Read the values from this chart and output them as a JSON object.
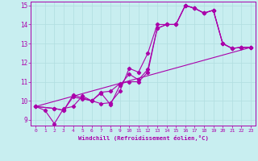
{
  "xlabel": "Windchill (Refroidissement éolien,°C)",
  "bg_color": "#c8eef0",
  "line_color": "#aa00aa",
  "grid_color": "#b0dde0",
  "xlim": [
    -0.5,
    23.5
  ],
  "ylim": [
    8.7,
    15.2
  ],
  "xticks": [
    0,
    1,
    2,
    3,
    4,
    5,
    6,
    7,
    8,
    9,
    10,
    11,
    12,
    13,
    14,
    15,
    16,
    17,
    18,
    19,
    20,
    21,
    22,
    23
  ],
  "yticks": [
    9,
    10,
    11,
    12,
    13,
    14,
    15
  ],
  "line1_x": [
    0,
    1,
    2,
    3,
    4,
    5,
    6,
    7,
    8,
    9,
    10,
    11,
    12,
    13,
    14,
    15,
    16,
    17,
    18,
    19,
    20,
    21,
    22,
    23
  ],
  "line1_y": [
    9.7,
    9.5,
    8.8,
    9.6,
    9.7,
    10.25,
    10.0,
    9.85,
    9.9,
    10.5,
    11.7,
    11.5,
    12.5,
    14.0,
    14.0,
    14.0,
    15.0,
    14.85,
    14.6,
    14.75,
    13.0,
    12.75,
    12.8,
    12.8
  ],
  "line2_x": [
    0,
    2,
    3,
    4,
    5,
    6,
    7,
    8,
    9,
    10,
    11,
    12,
    13,
    14,
    15,
    16,
    17,
    18,
    19,
    20,
    21,
    22,
    23
  ],
  "line2_y": [
    9.7,
    9.6,
    9.5,
    10.3,
    10.15,
    10.0,
    10.45,
    10.5,
    10.9,
    11.0,
    11.0,
    11.5,
    13.8,
    14.0,
    14.0,
    15.0,
    14.85,
    14.6,
    14.75,
    13.0,
    12.75,
    12.8,
    12.8
  ],
  "line3_x": [
    0,
    2,
    3,
    4,
    5,
    6,
    7,
    8,
    9,
    10,
    11,
    12,
    13,
    14,
    15,
    16,
    17,
    18,
    19,
    20,
    21,
    22,
    23
  ],
  "line3_y": [
    9.7,
    9.6,
    9.5,
    10.2,
    10.1,
    10.0,
    10.4,
    9.8,
    10.8,
    11.4,
    11.1,
    11.65,
    13.8,
    14.0,
    14.0,
    15.0,
    14.85,
    14.6,
    14.75,
    13.0,
    12.75,
    12.8,
    12.8
  ],
  "line4_x": [
    0,
    23
  ],
  "line4_y": [
    9.7,
    12.8
  ],
  "figsize": [
    3.2,
    2.0
  ],
  "dpi": 100
}
